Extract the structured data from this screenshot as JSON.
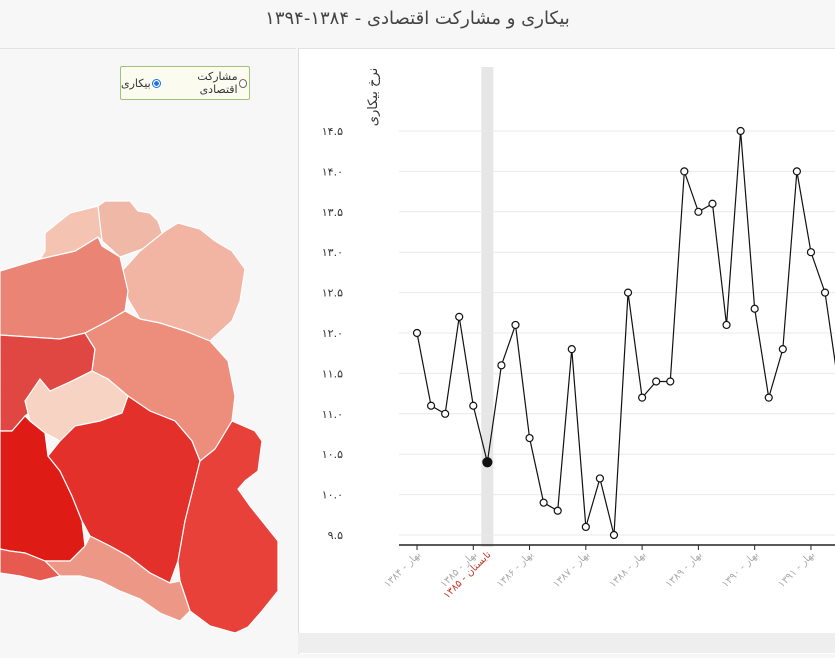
{
  "title": "بیکاری و مشارکت اقتصادی - ۱۳۸۴-۱۳۹۴",
  "toggle": {
    "options": [
      {
        "label": "مشارکت اقتصادی",
        "selected": false
      },
      {
        "label": "بیکاری",
        "selected": true
      }
    ]
  },
  "map": {
    "regions": [
      {
        "name": "r1",
        "fill": "#f0b8a6"
      },
      {
        "name": "r2",
        "fill": "#f2b4a3"
      },
      {
        "name": "r3",
        "fill": "#ea8576"
      },
      {
        "name": "r4",
        "fill": "#f4c3b2"
      },
      {
        "name": "r5",
        "fill": "#e04742"
      },
      {
        "name": "r6",
        "fill": "#ec8e7b"
      },
      {
        "name": "r7",
        "fill": "#f7d3c3"
      },
      {
        "name": "r8",
        "fill": "#df1b16"
      },
      {
        "name": "r9",
        "fill": "#e3302b"
      },
      {
        "name": "r10",
        "fill": "#e8413a"
      },
      {
        "name": "r11",
        "fill": "#ed9886"
      },
      {
        "name": "r12",
        "fill": "#e65a4f"
      }
    ]
  },
  "chart_data": {
    "type": "line",
    "ylabel": "نرخ بیکاری",
    "yticks": [
      "۹.۵",
      "۱۰.۰",
      "۱۰.۵",
      "۱۱.۰",
      "۱۱.۵",
      "۱۲.۰",
      "۱۲.۵",
      "۱۳.۰",
      "۱۳.۵",
      "۱۴.۰",
      "۱۴.۵"
    ],
    "ytick_values": [
      9.5,
      10.0,
      10.5,
      11.0,
      11.5,
      12.0,
      12.5,
      13.0,
      13.5,
      14.0,
      14.5
    ],
    "ylim": [
      9.5,
      14.5
    ],
    "xtick_labels": [
      "بهار - ۱۳۸۴",
      "بهار - ۱۳۸۵",
      "بهار - ۱۳۸۶",
      "بهار - ۱۳۸۷",
      "بهار - ۱۳۸۸",
      "بهار - ۱۳۸۹",
      "بهار - ۱۳۹۰",
      "بهار - ۱۳۹۱"
    ],
    "xtick_index": [
      0,
      4,
      8,
      12,
      16,
      20,
      24,
      28
    ],
    "highlight_label": "تابستان - ۱۳۸۵",
    "highlight_index": 5,
    "values": [
      12.0,
      11.1,
      11.0,
      12.2,
      11.1,
      10.4,
      11.6,
      12.1,
      10.7,
      9.9,
      9.8,
      11.8,
      9.6,
      10.2,
      9.5,
      12.5,
      11.2,
      11.4,
      11.4,
      14.0,
      13.5,
      13.6,
      12.1,
      14.5,
      12.3,
      11.2,
      11.8,
      14.0,
      13.0,
      12.5,
      11.3
    ],
    "grid": true,
    "colors": {
      "line": "#111111",
      "marker_fill": "#ffffff",
      "selected_marker": "#111111",
      "highlight_band": "#e6e6e6",
      "highlight_text": "#c0392b",
      "tick_text": "#aaaaaa"
    }
  }
}
